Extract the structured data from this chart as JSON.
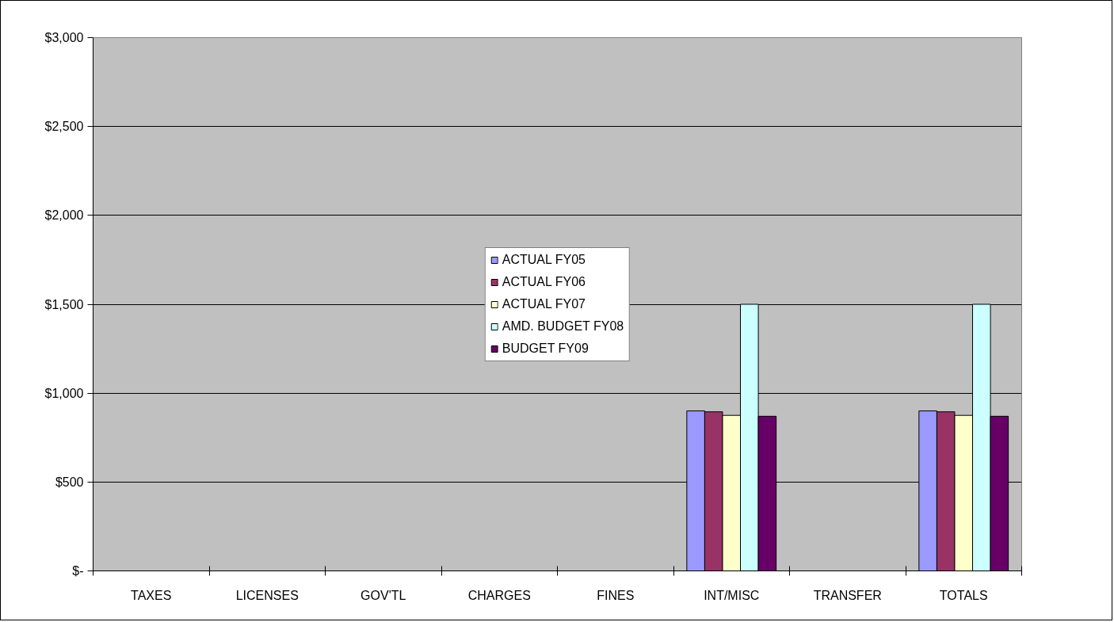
{
  "chart_data": {
    "type": "bar",
    "categories": [
      "TAXES",
      "LICENSES",
      "GOV'TL",
      "CHARGES",
      "FINES",
      "INT/MISC",
      "TRANSFER",
      "TOTALS"
    ],
    "series": [
      {
        "name": "ACTUAL FY05",
        "color": "#9999ff",
        "values": [
          null,
          null,
          null,
          null,
          null,
          900,
          null,
          900
        ]
      },
      {
        "name": "ACTUAL FY06",
        "color": "#993366",
        "values": [
          null,
          null,
          null,
          null,
          null,
          895,
          null,
          895
        ]
      },
      {
        "name": "ACTUAL FY07",
        "color": "#ffffcc",
        "values": [
          null,
          null,
          null,
          null,
          null,
          875,
          null,
          875
        ]
      },
      {
        "name": "AMD. BUDGET FY08",
        "color": "#ccffff",
        "values": [
          null,
          null,
          null,
          null,
          null,
          1500,
          null,
          1500
        ]
      },
      {
        "name": "BUDGET FY09",
        "color": "#660066",
        "values": [
          null,
          null,
          null,
          null,
          null,
          870,
          null,
          870
        ]
      }
    ],
    "ylim": [
      0,
      3000
    ],
    "yticks": [
      {
        "value": 0,
        "label": "$-"
      },
      {
        "value": 500,
        "label": "$500"
      },
      {
        "value": 1000,
        "label": "$1,000"
      },
      {
        "value": 1500,
        "label": "$1,500"
      },
      {
        "value": 2000,
        "label": "$2,000"
      },
      {
        "value": 2500,
        "label": "$2,500"
      },
      {
        "value": 3000,
        "label": "$3,000"
      }
    ],
    "grid": "y",
    "legend": "center"
  }
}
